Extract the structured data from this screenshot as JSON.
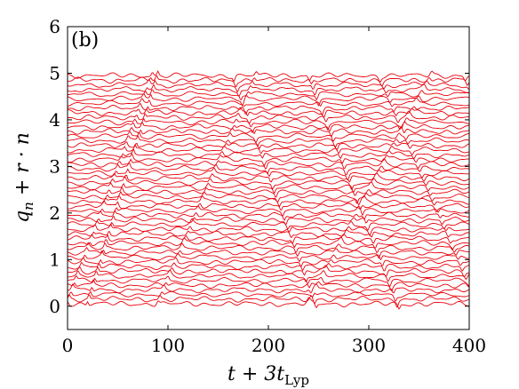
{
  "chart_data": {
    "type": "line",
    "panel_label": "(b)",
    "xlabel": "t + 3t",
    "xlabel_sub": "Lyp",
    "ylabel": "q",
    "ylabel_sub": "n",
    "ylabel_rest": " + r · n",
    "xlim": [
      0,
      400
    ],
    "ylim": [
      -0.5,
      6
    ],
    "xticks": [
      0,
      100,
      200,
      300,
      400
    ],
    "yticks": [
      0,
      1,
      2,
      3,
      4,
      5,
      6
    ],
    "grid": false,
    "series_count": 50,
    "series_spacing": 0.1,
    "wave_amplitude": 0.05,
    "line_color": "#e8000b",
    "description_hint": "50 stacked trajectories q_n + r·n (n = 0..49), offsets 0.1 apart, from t+3t_Lyp = 0 to 400, with diagonal soliton-like propagating features"
  }
}
